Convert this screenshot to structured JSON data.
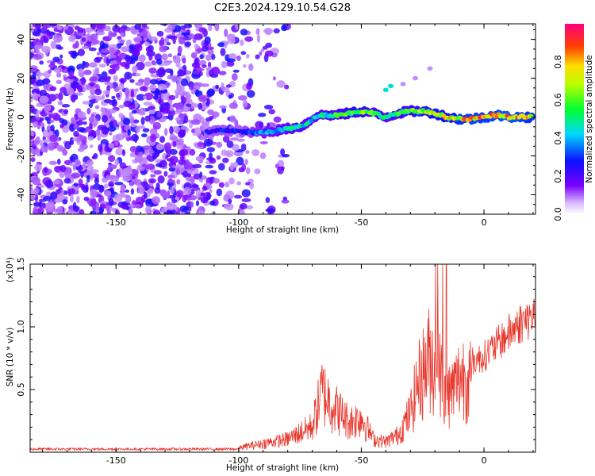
{
  "title": "C2E3.2024.129.10.54.G28",
  "chart_data": [
    {
      "type": "heatmap",
      "xlabel": "Height of straight line (km)",
      "ylabel": "Frequency (Hz)",
      "xlim": [
        -185,
        21
      ],
      "ylim": [
        -50,
        48
      ],
      "x_ticks": [
        -150,
        -100,
        -50,
        0
      ],
      "x_tick_labels": [
        "-150",
        "-100",
        "-50",
        "0"
      ],
      "y_ticks": [
        -40,
        -20,
        0,
        20,
        40
      ],
      "y_tick_labels": [
        "-40",
        "-20",
        "0",
        "20",
        "40"
      ],
      "colorbar": {
        "label": "Normalized spectral amplitude",
        "range": [
          0,
          1
        ],
        "ticks": [
          0.0,
          0.2,
          0.4,
          0.6,
          0.8
        ],
        "tick_labels": [
          "0.0",
          "0.2",
          "0.4",
          "0.6",
          "0.8"
        ],
        "colormap": "rainbow"
      },
      "ridge": {
        "x": [
          -113,
          -108,
          -100,
          -95,
          -90,
          -85,
          -80,
          -75,
          -72,
          -68,
          -64,
          -60,
          -55,
          -50,
          -45,
          -40,
          -35,
          -30,
          -25,
          -20,
          -15,
          -10,
          -5,
          0,
          5,
          10,
          15,
          20
        ],
        "y": [
          -8,
          -7,
          -7,
          -8,
          -8,
          -7,
          -6,
          -5,
          -3,
          1,
          1,
          1,
          2,
          3,
          2,
          0,
          2,
          3,
          3,
          2,
          0,
          -1,
          -1,
          0,
          1,
          0,
          0,
          0
        ],
        "amplitude": [
          0.3,
          0.32,
          0.3,
          0.35,
          0.4,
          0.45,
          0.5,
          0.55,
          0.5,
          0.5,
          0.55,
          0.6,
          0.65,
          0.7,
          0.6,
          0.55,
          0.6,
          0.65,
          0.7,
          0.75,
          0.8,
          0.85,
          0.9,
          0.88,
          0.92,
          0.95,
          0.9,
          0.85
        ]
      }
    },
    {
      "type": "line",
      "xlabel": "Height of straight line (km)",
      "ylabel": "SNR (10 * v/v)",
      "ylabel_scale": "(x10⁴)",
      "xlim": [
        -185,
        21
      ],
      "ylim": [
        0,
        1.5
      ],
      "x_ticks": [
        -150,
        -100,
        -50,
        0
      ],
      "x_tick_labels": [
        "-150",
        "-100",
        "-50",
        "0"
      ],
      "y_ticks": [
        0.5,
        1.0,
        1.5
      ],
      "y_tick_labels": [
        "0.5",
        "1.0",
        "1.5"
      ],
      "color": "#e8372c",
      "series_envelope": {
        "x": [
          -185,
          -120,
          -110,
          -100,
          -90,
          -80,
          -70,
          -66,
          -62,
          -55,
          -50,
          -45,
          -40,
          -35,
          -30,
          -27,
          -22,
          -18,
          -15,
          -12,
          -10,
          -8,
          -5,
          0,
          5,
          10,
          15,
          20
        ],
        "y": [
          0.02,
          0.02,
          0.03,
          0.05,
          0.1,
          0.15,
          0.3,
          0.7,
          0.55,
          0.35,
          0.4,
          0.15,
          0.12,
          0.2,
          0.45,
          0.8,
          1.1,
          0.9,
          0.65,
          0.75,
          0.85,
          0.9,
          0.8,
          0.85,
          0.95,
          1.05,
          1.15,
          1.2
        ]
      }
    }
  ]
}
